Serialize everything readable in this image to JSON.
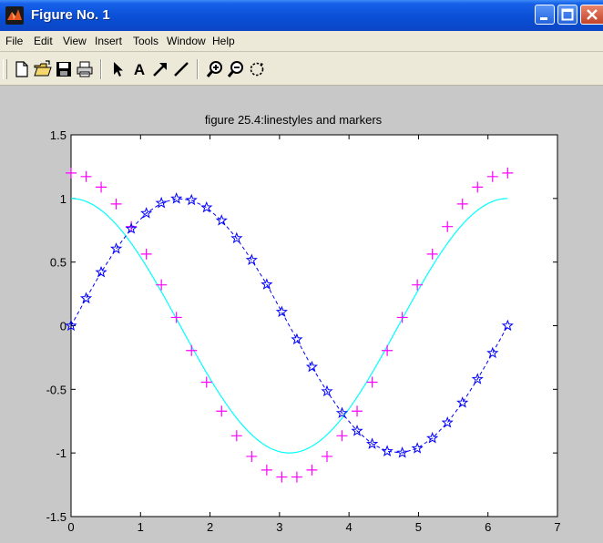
{
  "window": {
    "title": "Figure No. 1",
    "app_icon": "matlab-icon",
    "controls": [
      "minimize-icon",
      "maximize-icon",
      "close-icon"
    ]
  },
  "menu": {
    "items": [
      "File",
      "Edit",
      "View",
      "Insert",
      "Tools",
      "Window",
      "Help"
    ]
  },
  "toolbar": {
    "buttons": [
      "new-file-icon",
      "open-folder-icon",
      "save-icon",
      "print-icon",
      "select-arrow-icon",
      "text-icon",
      "arrow-icon",
      "line-icon",
      "zoom-in-icon",
      "zoom-out-icon",
      "rotate-icon"
    ],
    "text_label": "A"
  },
  "colors": {
    "title_bar": "#0a4fd6",
    "figure_background": "#c8c8c8",
    "axes_background": "#ffffff",
    "cyan_line": "#00ffff",
    "magenta_marker": "#ff00ff",
    "blue_series": "#0000ff"
  },
  "chart_data": {
    "type": "line",
    "title": "figure 25.4:linestyles and markers",
    "xlabel": "",
    "ylabel": "",
    "xlim": [
      0,
      7
    ],
    "ylim": [
      -1.5,
      1.5
    ],
    "x_ticks": [
      "0",
      "1",
      "2",
      "3",
      "4",
      "5",
      "6",
      "7"
    ],
    "y_ticks": [
      "-1.5",
      "-1",
      "-0.5",
      "0",
      "0.5",
      "1",
      "1.5"
    ],
    "grid": false,
    "legend": "none",
    "series": [
      {
        "style": "cyan solid line",
        "color": "#00ffff",
        "function": "cos(x)",
        "x_range": [
          0,
          6.2832
        ],
        "points": 100
      },
      {
        "style": "magenta plus markers",
        "color": "#ff00ff",
        "function": "1.2*cos(x)",
        "x": [
          0,
          0.2167,
          0.4333,
          0.65,
          0.8666,
          1.0833,
          1.3,
          1.5166,
          1.7333,
          1.95,
          2.1666,
          2.3833,
          2.5999,
          2.8166,
          3.0333,
          3.2499,
          3.4666,
          3.6833,
          3.8999,
          4.1166,
          4.3332,
          4.5499,
          4.7666,
          4.9832,
          5.1999,
          5.4166,
          5.6332,
          5.8499,
          6.0665,
          6.2832
        ],
        "y": [
          1.2,
          1.172,
          1.089,
          0.957,
          0.779,
          0.563,
          0.321,
          0.065,
          -0.195,
          -0.444,
          -0.671,
          -0.865,
          -1.027,
          -1.134,
          -1.189,
          -1.189,
          -1.134,
          -1.027,
          -0.865,
          -0.671,
          -0.444,
          -0.195,
          0.065,
          0.321,
          0.563,
          0.779,
          0.957,
          1.089,
          1.172,
          1.2
        ]
      },
      {
        "style": "blue dashed line with star markers",
        "color": "#0000ff",
        "function": "sin(x)",
        "x": [
          0,
          0.2167,
          0.4333,
          0.65,
          0.8666,
          1.0833,
          1.3,
          1.5166,
          1.7333,
          1.95,
          2.1666,
          2.3833,
          2.5999,
          2.8166,
          3.0333,
          3.2499,
          3.4666,
          3.6833,
          3.8999,
          4.1166,
          4.3332,
          4.5499,
          4.7666,
          4.9832,
          5.1999,
          5.4166,
          5.6332,
          5.8499,
          6.0665,
          6.2832
        ],
        "y": [
          0,
          0.215,
          0.42,
          0.605,
          0.762,
          0.884,
          0.964,
          0.999,
          0.987,
          0.929,
          0.827,
          0.687,
          0.516,
          0.324,
          0.108,
          -0.108,
          -0.324,
          -0.516,
          -0.687,
          -0.827,
          -0.929,
          -0.987,
          -0.999,
          -0.964,
          -0.884,
          -0.762,
          -0.605,
          -0.42,
          -0.215,
          0
        ]
      }
    ]
  }
}
